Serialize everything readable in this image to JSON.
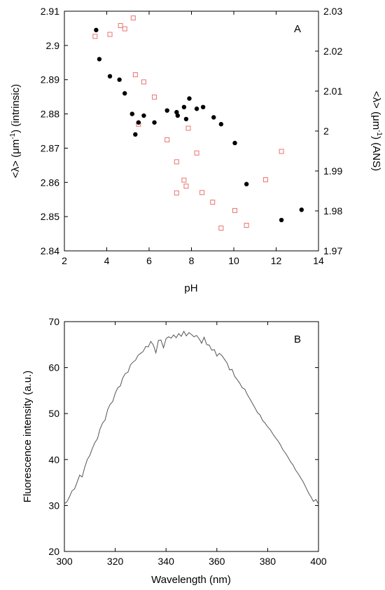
{
  "chart_data": [
    {
      "panel": "A",
      "type": "scatter",
      "xlabel": "pH",
      "ylabel_left": {
        "pre": "<λ> (μm",
        "sup": "-1",
        "post": ") (intrinsic)"
      },
      "ylabel_right": {
        "pre": "<λ> (μm",
        "sup": "-1",
        "post": ") (ANS)"
      },
      "xlim": [
        2,
        14
      ],
      "ylim_left": [
        2.84,
        2.91
      ],
      "ylim_right": [
        1.97,
        2.03
      ],
      "x_ticks": [
        "2",
        "4",
        "6",
        "8",
        "10",
        "12",
        "14"
      ],
      "y_left_ticks": [
        "2.84",
        "2.85",
        "2.86",
        "2.87",
        "2.88",
        "2.89",
        "2.9",
        "2.91"
      ],
      "y_right_ticks": [
        "1.97",
        "1.98",
        "1.99",
        "2",
        "2.01",
        "2.02",
        "2.03"
      ],
      "grid": false,
      "series": [
        {
          "axis": "left",
          "marker": "filled-circle",
          "color": "#000000",
          "points": [
            [
              3.5,
              2.9045
            ],
            [
              3.65,
              2.896
            ],
            [
              4.15,
              2.891
            ],
            [
              4.6,
              2.89
            ],
            [
              4.85,
              2.886
            ],
            [
              5.2,
              2.88
            ],
            [
              5.35,
              2.874
            ],
            [
              5.5,
              2.8775
            ],
            [
              5.75,
              2.8795
            ],
            [
              6.25,
              2.8775
            ],
            [
              6.85,
              2.881
            ],
            [
              7.3,
              2.8805
            ],
            [
              7.35,
              2.8795
            ],
            [
              7.65,
              2.882
            ],
            [
              7.75,
              2.8785
            ],
            [
              7.9,
              2.8845
            ],
            [
              8.25,
              2.8815
            ],
            [
              8.55,
              2.882
            ],
            [
              9.05,
              2.879
            ],
            [
              9.4,
              2.877
            ],
            [
              10.05,
              2.8715
            ],
            [
              10.6,
              2.8595
            ],
            [
              12.25,
              2.849
            ],
            [
              13.2,
              2.852
            ]
          ]
        },
        {
          "axis": "right",
          "marker": "open-square",
          "color": "#e8746f",
          "points": [
            [
              3.45,
              2.0237
            ],
            [
              4.15,
              2.0242
            ],
            [
              4.65,
              2.0264
            ],
            [
              4.85,
              2.0256
            ],
            [
              5.25,
              2.0283
            ],
            [
              5.35,
              2.0141
            ],
            [
              5.75,
              2.0123
            ],
            [
              6.25,
              2.0085
            ],
            [
              5.5,
              2.0017
            ],
            [
              6.85,
              1.9978
            ],
            [
              7.3,
              1.9845
            ],
            [
              7.3,
              1.9923
            ],
            [
              7.65,
              1.9877
            ],
            [
              7.75,
              1.9862
            ],
            [
              7.85,
              2.0007
            ],
            [
              8.25,
              1.9945
            ],
            [
              8.5,
              1.9846
            ],
            [
              9.0,
              1.9822
            ],
            [
              9.4,
              1.9757
            ],
            [
              10.05,
              1.9801
            ],
            [
              10.6,
              1.9764
            ],
            [
              11.5,
              1.9878
            ],
            [
              12.25,
              1.9949
            ]
          ]
        }
      ]
    },
    {
      "panel": "B",
      "type": "line",
      "xlabel": "Wavelength (nm)",
      "ylabel": "Fluorescence intensity (a.u.)",
      "xlim": [
        300,
        400
      ],
      "ylim": [
        20,
        70
      ],
      "x_ticks": [
        "300",
        "320",
        "340",
        "360",
        "380",
        "400"
      ],
      "y_ticks": [
        "20",
        "30",
        "40",
        "50",
        "60",
        "70"
      ],
      "grid": false,
      "color": "#555555",
      "points": [
        [
          300,
          30.4
        ],
        [
          301,
          30.8
        ],
        [
          302,
          31.9
        ],
        [
          303,
          33.2
        ],
        [
          304,
          33.6
        ],
        [
          305,
          35.1
        ],
        [
          306,
          36.6
        ],
        [
          307,
          36.2
        ],
        [
          308,
          38.3
        ],
        [
          309,
          40.0
        ],
        [
          310,
          40.9
        ],
        [
          311,
          42.4
        ],
        [
          312,
          43.7
        ],
        [
          313,
          44.5
        ],
        [
          314,
          46.6
        ],
        [
          315,
          47.9
        ],
        [
          316,
          48.6
        ],
        [
          317,
          50.8
        ],
        [
          318,
          52.0
        ],
        [
          319,
          52.6
        ],
        [
          320,
          54.4
        ],
        [
          321,
          55.6
        ],
        [
          322,
          56.0
        ],
        [
          323,
          57.8
        ],
        [
          324,
          58.7
        ],
        [
          325,
          59.0
        ],
        [
          326,
          60.6
        ],
        [
          327,
          61.2
        ],
        [
          328,
          61.6
        ],
        [
          329,
          62.7
        ],
        [
          330,
          63.1
        ],
        [
          331,
          63.5
        ],
        [
          332,
          64.6
        ],
        [
          333,
          64.5
        ],
        [
          334,
          65.7
        ],
        [
          335,
          64.9
        ],
        [
          336,
          63.2
        ],
        [
          337,
          65.9
        ],
        [
          338,
          66.0
        ],
        [
          339,
          64.3
        ],
        [
          340,
          66.3
        ],
        [
          341,
          66.7
        ],
        [
          342,
          66.4
        ],
        [
          343,
          67.1
        ],
        [
          344,
          66.5
        ],
        [
          345,
          67.4
        ],
        [
          346,
          66.8
        ],
        [
          347,
          67.9
        ],
        [
          348,
          66.9
        ],
        [
          349,
          67.6
        ],
        [
          350,
          67.2
        ],
        [
          351,
          66.7
        ],
        [
          352,
          67.0
        ],
        [
          353,
          66.3
        ],
        [
          354,
          65.3
        ],
        [
          355,
          66.6
        ],
        [
          356,
          65.0
        ],
        [
          357,
          64.9
        ],
        [
          358,
          63.8
        ],
        [
          359,
          63.9
        ],
        [
          360,
          62.5
        ],
        [
          361,
          63.1
        ],
        [
          362,
          62.6
        ],
        [
          363,
          61.8
        ],
        [
          364,
          61.0
        ],
        [
          365,
          59.5
        ],
        [
          366,
          59.6
        ],
        [
          367,
          58.1
        ],
        [
          368,
          57.4
        ],
        [
          369,
          56.6
        ],
        [
          370,
          55.6
        ],
        [
          371,
          55.3
        ],
        [
          372,
          54.1
        ],
        [
          373,
          53.2
        ],
        [
          374,
          52.2
        ],
        [
          375,
          51.2
        ],
        [
          376,
          50.2
        ],
        [
          377,
          49.7
        ],
        [
          378,
          48.5
        ],
        [
          379,
          47.9
        ],
        [
          380,
          47.1
        ],
        [
          381,
          46.5
        ],
        [
          382,
          45.6
        ],
        [
          383,
          44.8
        ],
        [
          384,
          44.1
        ],
        [
          385,
          43.2
        ],
        [
          386,
          42.1
        ],
        [
          387,
          41.4
        ],
        [
          388,
          40.5
        ],
        [
          389,
          39.5
        ],
        [
          390,
          38.8
        ],
        [
          391,
          37.7
        ],
        [
          392,
          36.9
        ],
        [
          393,
          36.0
        ],
        [
          394,
          35.1
        ],
        [
          395,
          34.0
        ],
        [
          396,
          32.8
        ],
        [
          397,
          31.9
        ],
        [
          398,
          30.9
        ],
        [
          399,
          31.3
        ],
        [
          400,
          30.3
        ]
      ]
    }
  ]
}
